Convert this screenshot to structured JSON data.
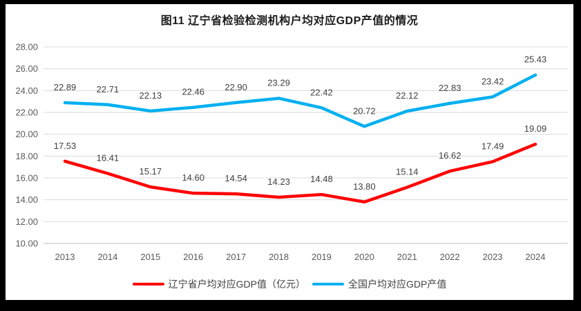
{
  "chart_data": {
    "type": "line",
    "title": "图11 辽宁省检验检测机构户均对应GDP产值的情况",
    "categories": [
      "2013",
      "2014",
      "2015",
      "2016",
      "2017",
      "2018",
      "2019",
      "2020",
      "2021",
      "2022",
      "2023",
      "2024"
    ],
    "series": [
      {
        "name": "辽宁省户均对应GDP值（亿元）",
        "color": "#FF0000",
        "values": [
          17.53,
          16.41,
          15.17,
          14.6,
          14.54,
          14.23,
          14.48,
          13.8,
          15.14,
          16.62,
          17.49,
          19.09
        ]
      },
      {
        "name": "全国户均对应GDP产值",
        "color": "#00B0F0",
        "values": [
          22.89,
          22.71,
          22.13,
          22.46,
          22.9,
          23.29,
          22.42,
          20.72,
          22.12,
          22.83,
          23.42,
          25.43
        ]
      }
    ],
    "ylim": [
      10,
      28
    ],
    "ytick_step": 2,
    "ytick_decimals": 2,
    "data_label_decimals": 2,
    "grid": true,
    "legend_position": "bottom",
    "colors": {
      "gridline": "#D9D9D9",
      "axis_line": "#BFBFBF",
      "axis_text": "#595959",
      "data_label_text": "#404040"
    }
  }
}
